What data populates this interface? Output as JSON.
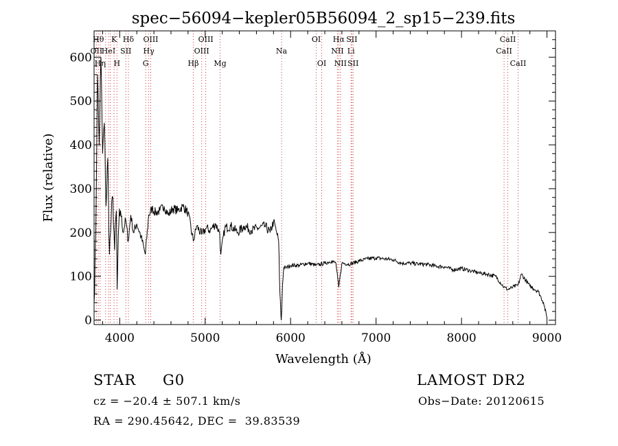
{
  "chart_data": {
    "type": "line",
    "title": "spec−56094−kepler05B56094_2_sp15−239.fits",
    "xlabel": "Wavelength (Å)",
    "ylabel": "Flux (relative)",
    "xlim": [
      3700,
      9100
    ],
    "ylim": [
      -10,
      660
    ],
    "x_ticks": [
      4000,
      5000,
      6000,
      7000,
      8000,
      9000
    ],
    "y_ticks": [
      0,
      100,
      200,
      300,
      400,
      500,
      600
    ],
    "grid": false,
    "series": [
      {
        "x": [
          3700,
          3720,
          3740,
          3760,
          3780,
          3800,
          3820,
          3840,
          3860,
          3880,
          3900,
          3920,
          3940,
          3960,
          3970,
          3990,
          4010,
          4040,
          4070,
          4100,
          4130,
          4160,
          4200,
          4250,
          4300,
          4340,
          4380,
          4420,
          4470,
          4520,
          4570,
          4620,
          4680,
          4740,
          4800,
          4861,
          4900,
          4960,
          5010,
          5060,
          5120,
          5170,
          5183,
          5230,
          5300,
          5380,
          5460,
          5540,
          5620,
          5700,
          5760,
          5800,
          5830,
          5860,
          5875,
          5890,
          5896,
          5905,
          5920,
          5950,
          6000,
          6100,
          6200,
          6300,
          6400,
          6480,
          6530,
          6563,
          6600,
          6700,
          6800,
          6900,
          7000,
          7100,
          7200,
          7300,
          7400,
          7500,
          7600,
          7700,
          7800,
          7900,
          8000,
          8100,
          8200,
          8300,
          8400,
          8498,
          8542,
          8600,
          8662,
          8700,
          8800,
          8900,
          8960,
          9000
        ],
        "y": [
          40,
          200,
          560,
          400,
          600,
          380,
          450,
          260,
          370,
          150,
          230,
          280,
          160,
          250,
          70,
          220,
          250,
          200,
          230,
          180,
          240,
          200,
          220,
          190,
          150,
          240,
          255,
          245,
          250,
          260,
          240,
          255,
          250,
          260,
          245,
          180,
          215,
          195,
          210,
          205,
          220,
          200,
          150,
          210,
          215,
          200,
          215,
          205,
          210,
          215,
          200,
          225,
          205,
          180,
          60,
          0,
          20,
          80,
          120,
          120,
          125,
          125,
          130,
          125,
          130,
          135,
          130,
          75,
          130,
          128,
          135,
          140,
          142,
          140,
          138,
          130,
          130,
          128,
          127,
          123,
          122,
          115,
          118,
          113,
          108,
          105,
          100,
          75,
          70,
          75,
          80,
          105,
          78,
          65,
          40,
          5
        ]
      }
    ],
    "lines": [
      {
        "x": 3727,
        "label": "OII",
        "row": 2,
        "color": "#cc3333"
      },
      {
        "x": 3750,
        "label": "Hθ",
        "row": 1,
        "color": "#cc3333"
      },
      {
        "x": 3771,
        "label": "Hη",
        "row": 3,
        "color": "#cc3333"
      },
      {
        "x": 3835,
        "label": "",
        "row": 0,
        "color": "#cc3333"
      },
      {
        "x": 3869,
        "label": "HeI",
        "row": 2,
        "color": "#cc3333"
      },
      {
        "x": 3889,
        "label": "",
        "row": 0,
        "color": "#cc3333"
      },
      {
        "x": 3934,
        "label": "K",
        "row": 1,
        "color": "#cc3333"
      },
      {
        "x": 3968,
        "label": "H",
        "row": 3,
        "color": "#cc3333"
      },
      {
        "x": 4072,
        "label": "SII",
        "row": 2,
        "color": "#cc3333"
      },
      {
        "x": 4102,
        "label": "Hδ",
        "row": 1,
        "color": "#cc3333"
      },
      {
        "x": 4304,
        "label": "G",
        "row": 3,
        "color": "#cc3333"
      },
      {
        "x": 4340,
        "label": "Hγ",
        "row": 2,
        "color": "#cc3333"
      },
      {
        "x": 4363,
        "label": "OIII",
        "row": 1,
        "color": "#cc3333"
      },
      {
        "x": 4861,
        "label": "Hβ",
        "row": 3,
        "color": "#cc3333"
      },
      {
        "x": 4959,
        "label": "OIII",
        "row": 2,
        "color": "#cc3333"
      },
      {
        "x": 5007,
        "label": "OIII",
        "row": 1,
        "color": "#cc3333"
      },
      {
        "x": 5175,
        "label": "Mg",
        "row": 3,
        "color": "#cc3333"
      },
      {
        "x": 5894,
        "label": "Na",
        "row": 2,
        "color": "#cc3333"
      },
      {
        "x": 6300,
        "label": "OI",
        "row": 1,
        "color": "#cc3333"
      },
      {
        "x": 6364,
        "label": "OI",
        "row": 3,
        "color": "#cc3333"
      },
      {
        "x": 6548,
        "label": "NII",
        "row": 2,
        "color": "#cc3333"
      },
      {
        "x": 6563,
        "label": "Hα",
        "row": 1,
        "color": "#cc3333"
      },
      {
        "x": 6583,
        "label": "NII",
        "row": 3,
        "color": "#cc3333"
      },
      {
        "x": 6707,
        "label": "Li",
        "row": 2,
        "color": "#cc3333"
      },
      {
        "x": 6716,
        "label": "SII",
        "row": 1,
        "color": "#cc3333"
      },
      {
        "x": 6731,
        "label": "SII",
        "row": 3,
        "color": "#cc3333"
      },
      {
        "x": 8498,
        "label": "CaII",
        "row": 2,
        "color": "#cc3333"
      },
      {
        "x": 8542,
        "label": "CaII",
        "row": 1,
        "color": "#cc3333"
      },
      {
        "x": 8662,
        "label": "CaII",
        "row": 3,
        "color": "#cc3333"
      }
    ]
  },
  "footer": {
    "object_class": "STAR",
    "subclass": "G0",
    "survey": "LAMOST DR2",
    "redshift": "cz = −20.4 ± 507.1 km/s",
    "obs_date": "Obs−Date: 20120615",
    "coords": "RA = 290.45642, DEC =  39.83539"
  }
}
